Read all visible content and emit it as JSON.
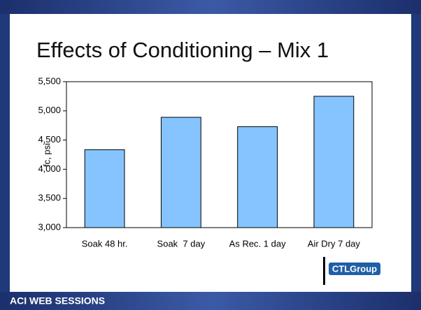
{
  "slide": {
    "title": "Effects of Conditioning – Mix 1",
    "footer": "ACI WEB SESSIONS",
    "logo": "CTLGroup"
  },
  "chart_data": {
    "type": "bar",
    "y_label": "fc, psi",
    "categories": [
      "Soak 48 hr.",
      "Soak  7 day",
      "As Rec. 1 day",
      "Air Dry 7 day"
    ],
    "values": [
      4335,
      4890,
      4730,
      5250
    ],
    "color": "#85c4ff",
    "ylim": [
      3000,
      5500
    ],
    "yticks": [
      {
        "value": 3000,
        "label": "3,000"
      },
      {
        "value": 3500,
        "label": "3,500"
      },
      {
        "value": 4000,
        "label": "4,000"
      },
      {
        "value": 4500,
        "label": "4,500"
      },
      {
        "value": 5000,
        "label": "5,000"
      },
      {
        "value": 5500,
        "label": "5,500"
      }
    ],
    "grid": false
  }
}
